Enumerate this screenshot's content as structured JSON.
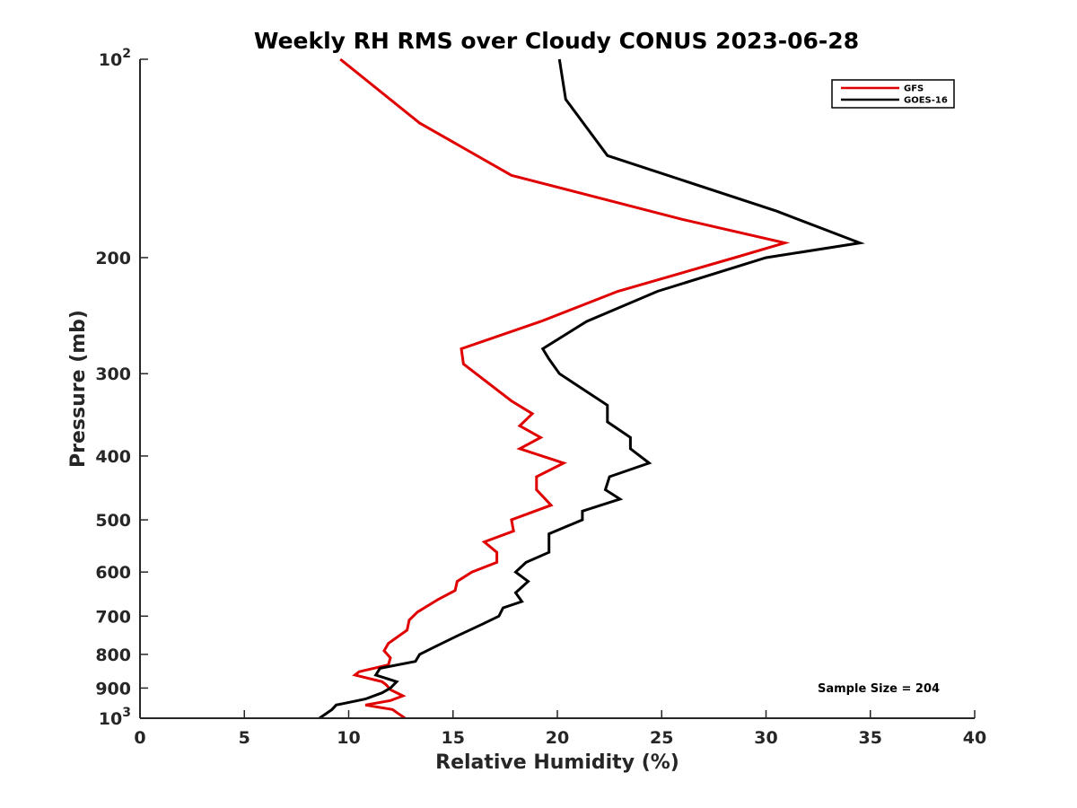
{
  "chart_data": {
    "type": "line",
    "title": "Weekly RH RMS over Cloudy CONUS 2023-06-28",
    "xlabel": "Relative Humidity (%)",
    "ylabel": "Pressure (mb)",
    "xlim": [
      0,
      40
    ],
    "ylim": [
      1000,
      100
    ],
    "yscale": "log",
    "y_reversed": true,
    "x_ticks": [
      0,
      5,
      10,
      15,
      20,
      25,
      30,
      35,
      40
    ],
    "y_ticks": [
      100,
      200,
      300,
      400,
      500,
      600,
      700,
      800,
      900,
      1000
    ],
    "y_tick_labels": {
      "100": {
        "base": "10",
        "exp": "2"
      },
      "200": "200",
      "300": "300",
      "400": "400",
      "500": "500",
      "600": "600",
      "700": "700",
      "800": "800",
      "900": "900",
      "1000": {
        "base": "10",
        "exp": "3"
      }
    },
    "legend_position": "top-right",
    "grid": false,
    "series": [
      {
        "name": "GFS",
        "color": "#e00000",
        "points": [
          [
            9.6,
            100
          ],
          [
            13.4,
            125
          ],
          [
            17.8,
            150
          ],
          [
            26.0,
            175
          ],
          [
            30.9,
            190
          ],
          [
            28.5,
            200
          ],
          [
            22.9,
            225
          ],
          [
            19.2,
            250
          ],
          [
            15.4,
            275
          ],
          [
            15.5,
            290
          ],
          [
            17.8,
            330
          ],
          [
            18.8,
            345
          ],
          [
            18.2,
            360
          ],
          [
            19.2,
            375
          ],
          [
            18.2,
            390
          ],
          [
            20.3,
            410
          ],
          [
            19.0,
            430
          ],
          [
            19.0,
            450
          ],
          [
            19.7,
            475
          ],
          [
            17.8,
            500
          ],
          [
            17.9,
            520
          ],
          [
            16.5,
            540
          ],
          [
            17.1,
            560
          ],
          [
            17.1,
            580
          ],
          [
            15.9,
            600
          ],
          [
            15.2,
            620
          ],
          [
            15.1,
            640
          ],
          [
            14.3,
            660
          ],
          [
            13.3,
            690
          ],
          [
            12.9,
            710
          ],
          [
            12.8,
            735
          ],
          [
            11.9,
            770
          ],
          [
            11.7,
            790
          ],
          [
            12.0,
            810
          ],
          [
            11.9,
            830
          ],
          [
            10.5,
            850
          ],
          [
            10.3,
            860
          ],
          [
            11.6,
            880
          ],
          [
            11.8,
            890
          ],
          [
            12.0,
            905
          ],
          [
            12.6,
            925
          ],
          [
            12.0,
            940
          ],
          [
            10.8,
            955
          ],
          [
            12.1,
            970
          ],
          [
            12.4,
            985
          ],
          [
            12.7,
            1000
          ]
        ]
      },
      {
        "name": "GOES-16",
        "color": "#000000",
        "points": [
          [
            20.1,
            100
          ],
          [
            20.4,
            115
          ],
          [
            22.4,
            140
          ],
          [
            30.5,
            170
          ],
          [
            34.5,
            190
          ],
          [
            30.0,
            200
          ],
          [
            24.8,
            225
          ],
          [
            21.4,
            250
          ],
          [
            19.3,
            275
          ],
          [
            19.6,
            285
          ],
          [
            20.1,
            300
          ],
          [
            22.4,
            335
          ],
          [
            22.4,
            355
          ],
          [
            23.5,
            375
          ],
          [
            23.5,
            390
          ],
          [
            24.4,
            410
          ],
          [
            22.5,
            430
          ],
          [
            22.3,
            450
          ],
          [
            23.0,
            465
          ],
          [
            21.2,
            485
          ],
          [
            21.2,
            500
          ],
          [
            19.6,
            525
          ],
          [
            19.6,
            560
          ],
          [
            18.5,
            580
          ],
          [
            18.0,
            600
          ],
          [
            18.6,
            620
          ],
          [
            18.0,
            645
          ],
          [
            18.3,
            665
          ],
          [
            17.4,
            680
          ],
          [
            17.2,
            700
          ],
          [
            16.4,
            720
          ],
          [
            15.2,
            750
          ],
          [
            14.1,
            780
          ],
          [
            13.4,
            800
          ],
          [
            13.2,
            820
          ],
          [
            11.5,
            840
          ],
          [
            11.3,
            860
          ],
          [
            12.3,
            880
          ],
          [
            12.0,
            900
          ],
          [
            11.6,
            915
          ],
          [
            10.8,
            935
          ],
          [
            9.4,
            955
          ],
          [
            9.2,
            970
          ],
          [
            8.6,
            1000
          ]
        ]
      }
    ],
    "annotations": [
      "Sample Size = 204"
    ]
  }
}
